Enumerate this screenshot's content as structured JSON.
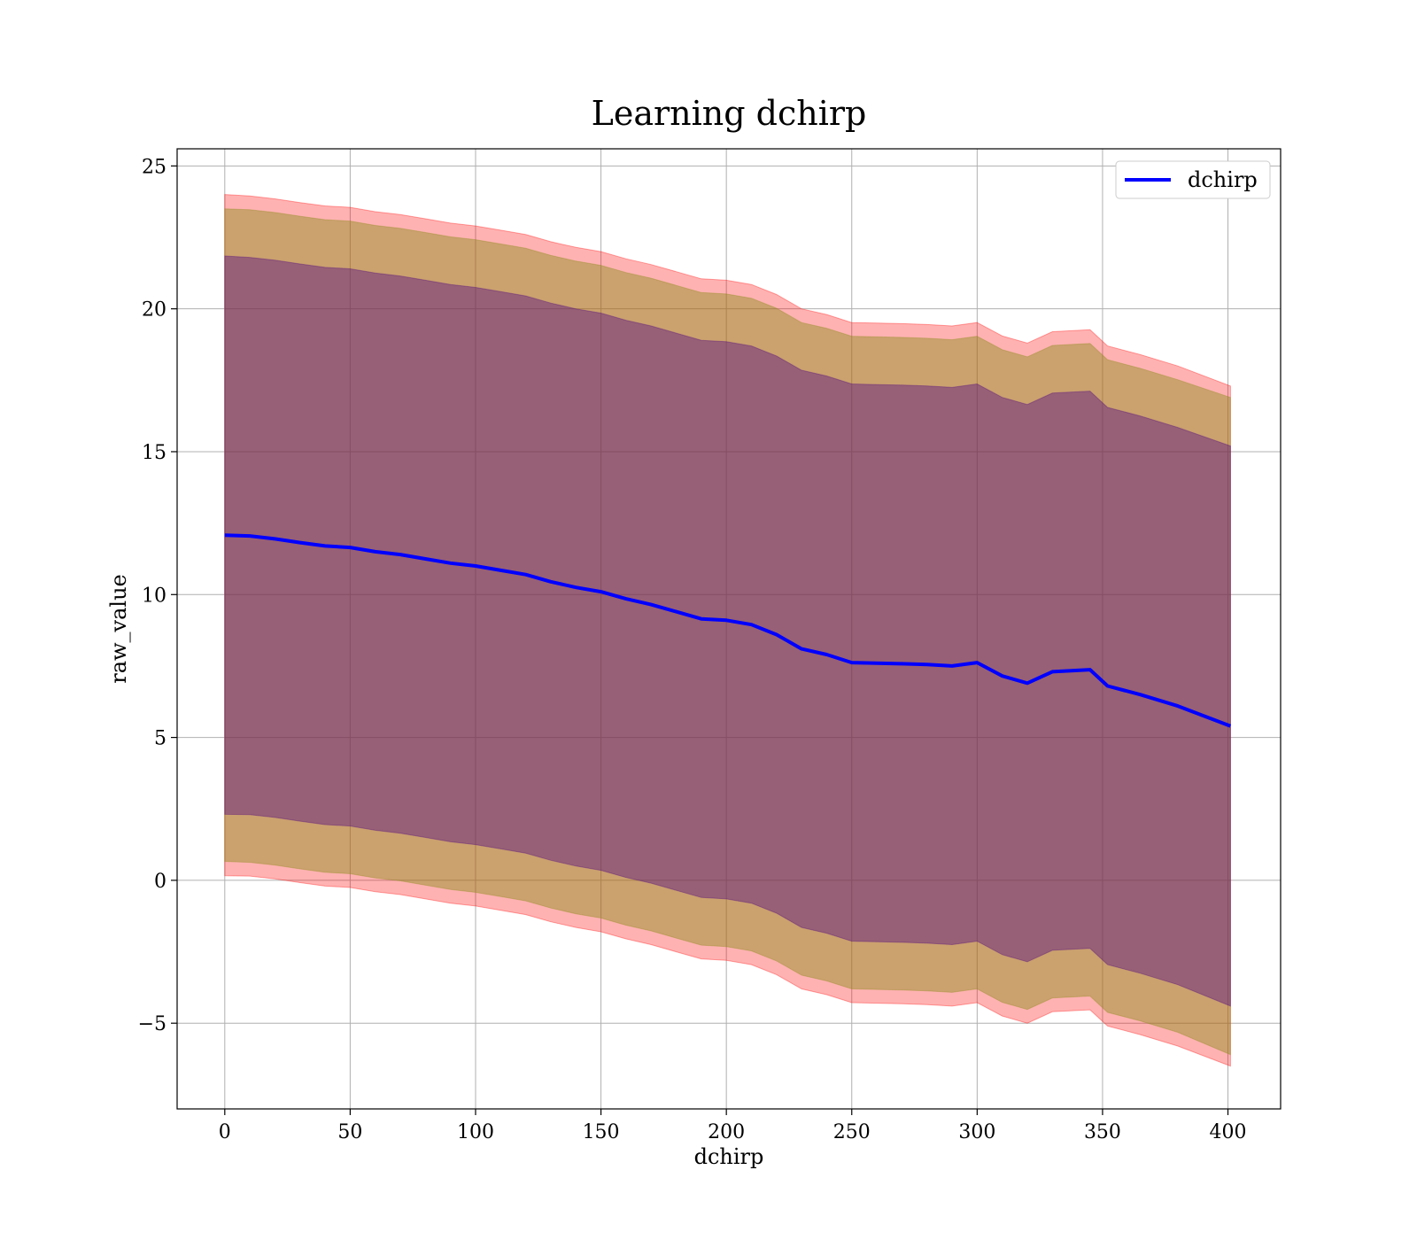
{
  "chart_data": {
    "type": "line",
    "title": "Learning dchirp",
    "xlabel": "dchirp",
    "ylabel": "raw_value",
    "xlim": [
      -19,
      421
    ],
    "ylim": [
      -8,
      25.6
    ],
    "xticks": [
      0,
      50,
      100,
      150,
      200,
      250,
      300,
      350,
      400
    ],
    "yticks": [
      -5,
      0,
      5,
      10,
      15,
      20,
      25
    ],
    "xtick_labels": [
      "0",
      "50",
      "100",
      "150",
      "200",
      "250",
      "300",
      "350",
      "400"
    ],
    "ytick_labels": [
      "−5",
      "0",
      "5",
      "10",
      "15",
      "20",
      "25"
    ],
    "grid": true,
    "legend": {
      "position": "top-right",
      "entries": [
        "dchirp"
      ]
    },
    "colors": {
      "line": "#0000ff",
      "band_outer": "#ff0000",
      "band_middle": "#8c8c1a",
      "band_inner": "#4b0082",
      "grid": "#b0b0b0"
    },
    "x": [
      0,
      10,
      20,
      30,
      40,
      50,
      60,
      70,
      80,
      90,
      100,
      110,
      120,
      130,
      140,
      150,
      160,
      170,
      180,
      190,
      200,
      210,
      220,
      230,
      240,
      250,
      260,
      270,
      280,
      290,
      300,
      310,
      320,
      330,
      345,
      352,
      365,
      380,
      401
    ],
    "series": [
      {
        "name": "dchirp",
        "values": [
          12.08,
          12.05,
          11.95,
          11.82,
          11.7,
          11.65,
          11.5,
          11.4,
          11.25,
          11.1,
          11.0,
          10.85,
          10.7,
          10.45,
          10.25,
          10.1,
          9.85,
          9.65,
          9.4,
          9.15,
          9.1,
          8.95,
          8.6,
          8.1,
          7.9,
          7.62,
          7.6,
          7.58,
          7.55,
          7.5,
          7.62,
          7.15,
          6.9,
          7.3,
          7.37,
          6.8,
          6.5,
          6.1,
          5.4
        ]
      }
    ],
    "bands": [
      {
        "level": "outer",
        "upper": [
          24.0,
          23.95,
          23.85,
          23.72,
          23.6,
          23.55,
          23.4,
          23.3,
          23.15,
          23.0,
          22.9,
          22.75,
          22.6,
          22.35,
          22.15,
          22.0,
          21.75,
          21.55,
          21.3,
          21.05,
          21.0,
          20.85,
          20.5,
          20.0,
          19.8,
          19.52,
          19.5,
          19.48,
          19.45,
          19.4,
          19.52,
          19.05,
          18.8,
          19.2,
          19.27,
          18.7,
          18.4,
          18.0,
          17.3
        ],
        "lower": [
          0.16,
          0.15,
          0.05,
          -0.08,
          -0.2,
          -0.25,
          -0.4,
          -0.5,
          -0.65,
          -0.8,
          -0.9,
          -1.05,
          -1.2,
          -1.45,
          -1.65,
          -1.8,
          -2.05,
          -2.25,
          -2.5,
          -2.75,
          -2.8,
          -2.95,
          -3.3,
          -3.8,
          -4.0,
          -4.28,
          -4.3,
          -4.32,
          -4.35,
          -4.4,
          -4.28,
          -4.75,
          -5.0,
          -4.6,
          -4.53,
          -5.1,
          -5.4,
          -5.8,
          -6.5
        ]
      },
      {
        "level": "middle",
        "upper": [
          23.5,
          23.47,
          23.37,
          23.24,
          23.12,
          23.07,
          22.92,
          22.82,
          22.67,
          22.52,
          22.42,
          22.27,
          22.12,
          21.87,
          21.67,
          21.52,
          21.27,
          21.07,
          20.82,
          20.57,
          20.52,
          20.37,
          20.02,
          19.52,
          19.32,
          19.04,
          19.02,
          19.0,
          18.97,
          18.92,
          19.04,
          18.57,
          18.32,
          18.72,
          18.79,
          18.22,
          17.92,
          17.52,
          16.9
        ],
        "lower": [
          0.66,
          0.63,
          0.53,
          0.4,
          0.28,
          0.23,
          0.08,
          -0.02,
          -0.17,
          -0.32,
          -0.42,
          -0.57,
          -0.72,
          -0.97,
          -1.17,
          -1.32,
          -1.57,
          -1.77,
          -2.02,
          -2.27,
          -2.32,
          -2.47,
          -2.82,
          -3.32,
          -3.52,
          -3.8,
          -3.82,
          -3.84,
          -3.87,
          -3.92,
          -3.8,
          -4.27,
          -4.52,
          -4.12,
          -4.05,
          -4.62,
          -4.92,
          -5.32,
          -6.1
        ]
      },
      {
        "level": "inner",
        "upper": [
          21.85,
          21.8,
          21.7,
          21.57,
          21.45,
          21.4,
          21.25,
          21.15,
          21.0,
          20.85,
          20.75,
          20.6,
          20.45,
          20.2,
          20.0,
          19.85,
          19.6,
          19.4,
          19.15,
          18.9,
          18.85,
          18.7,
          18.35,
          17.85,
          17.65,
          17.37,
          17.35,
          17.33,
          17.3,
          17.25,
          17.37,
          16.9,
          16.65,
          17.05,
          17.12,
          16.55,
          16.25,
          15.85,
          15.2
        ],
        "lower": [
          2.31,
          2.3,
          2.2,
          2.07,
          1.95,
          1.9,
          1.75,
          1.65,
          1.5,
          1.35,
          1.25,
          1.1,
          0.95,
          0.7,
          0.5,
          0.35,
          0.1,
          -0.1,
          -0.35,
          -0.6,
          -0.65,
          -0.8,
          -1.15,
          -1.65,
          -1.85,
          -2.13,
          -2.15,
          -2.17,
          -2.2,
          -2.25,
          -2.13,
          -2.6,
          -2.85,
          -2.45,
          -2.38,
          -2.95,
          -3.25,
          -3.65,
          -4.4
        ]
      }
    ]
  }
}
